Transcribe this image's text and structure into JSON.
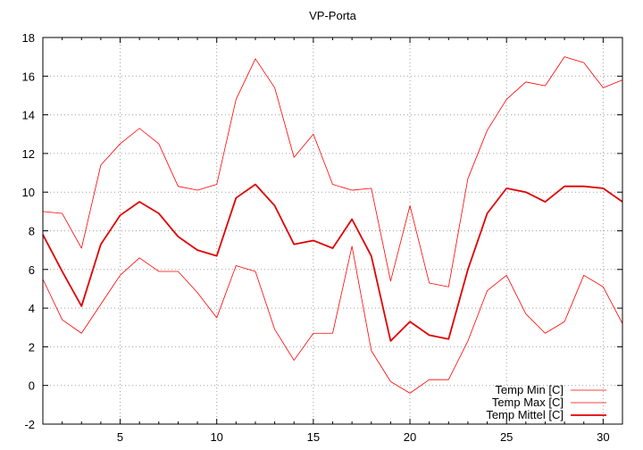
{
  "chart_data": {
    "type": "line",
    "title": "VP-Porta",
    "xlabel": "",
    "ylabel": "",
    "xlim": [
      1,
      31
    ],
    "ylim": [
      -2,
      18
    ],
    "x_ticks": [
      5,
      10,
      15,
      20,
      25,
      30
    ],
    "y_ticks": [
      -2,
      0,
      2,
      4,
      6,
      8,
      10,
      12,
      14,
      16,
      18
    ],
    "grid": true,
    "legend_position": "bottom-right",
    "x": [
      1,
      2,
      3,
      4,
      5,
      6,
      7,
      8,
      9,
      10,
      11,
      12,
      13,
      14,
      15,
      16,
      17,
      18,
      19,
      20,
      21,
      22,
      23,
      24,
      25,
      26,
      27,
      28,
      29,
      30,
      31
    ],
    "series": [
      {
        "name": "Temp Min [C]",
        "color": "#ff0000",
        "line_weight": "thin",
        "values": [
          5.5,
          3.4,
          2.7,
          4.2,
          5.7,
          6.6,
          5.9,
          5.9,
          4.8,
          3.5,
          6.2,
          5.9,
          2.9,
          1.3,
          2.7,
          2.7,
          7.2,
          1.8,
          0.2,
          -0.4,
          0.3,
          0.3,
          2.3,
          4.9,
          5.7,
          3.7,
          2.7,
          3.3,
          5.7,
          5.1,
          3.2
        ]
      },
      {
        "name": "Temp Max [C]",
        "color": "#ff0000",
        "line_weight": "thin",
        "values": [
          9.0,
          8.9,
          7.1,
          11.4,
          12.5,
          13.3,
          12.5,
          10.3,
          10.1,
          10.4,
          14.8,
          16.9,
          15.4,
          11.8,
          13.0,
          10.4,
          10.1,
          10.2,
          5.4,
          9.3,
          5.3,
          5.1,
          10.7,
          13.2,
          14.8,
          15.7,
          15.5,
          17.0,
          16.7,
          15.4,
          15.8
        ]
      },
      {
        "name": "Temp Mittel [C]",
        "color": "#e00000",
        "line_weight": "thick",
        "values": [
          7.8,
          5.9,
          4.1,
          7.3,
          8.8,
          9.5,
          8.9,
          7.7,
          7.0,
          6.7,
          9.7,
          10.4,
          9.3,
          7.3,
          7.5,
          7.1,
          8.6,
          6.7,
          2.3,
          3.3,
          2.6,
          2.4,
          6.0,
          8.9,
          10.2,
          10.0,
          9.5,
          10.3,
          10.3,
          10.2,
          9.5
        ]
      }
    ]
  }
}
